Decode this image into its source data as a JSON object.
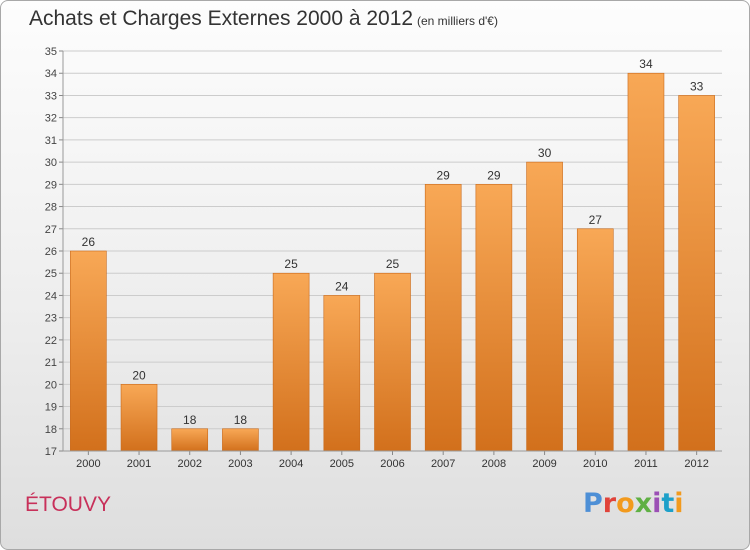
{
  "title": "Achats et Charges Externes 2000 à 2012",
  "subtitle": "(en milliers d'€)",
  "location": "ÉTOUVY",
  "logo": {
    "text": "Proxiti",
    "colors": [
      "#4d8fd6",
      "#e0433a",
      "#f29a1d",
      "#5fb043",
      "#9b4fb5",
      "#1da0c9",
      "#f29a1d"
    ]
  },
  "colors": {
    "bar_light": "#f8a856",
    "bar_dark": "#d2701c",
    "grid": "#cccccc"
  },
  "chart_data": {
    "type": "bar",
    "categories": [
      "2000",
      "2001",
      "2002",
      "2003",
      "2004",
      "2005",
      "2006",
      "2007",
      "2008",
      "2009",
      "2010",
      "2011",
      "2012"
    ],
    "values": [
      26,
      20,
      18,
      18,
      25,
      24,
      25,
      29,
      29,
      30,
      27,
      34,
      33
    ],
    "title": "Achats et Charges Externes 2000 à 2012",
    "xlabel": "",
    "ylabel": "",
    "ylim": [
      17,
      35
    ],
    "yticks": [
      17,
      18,
      19,
      20,
      21,
      22,
      23,
      24,
      25,
      26,
      27,
      28,
      29,
      30,
      31,
      32,
      33,
      34,
      35
    ],
    "grid": true,
    "legend": "none"
  }
}
